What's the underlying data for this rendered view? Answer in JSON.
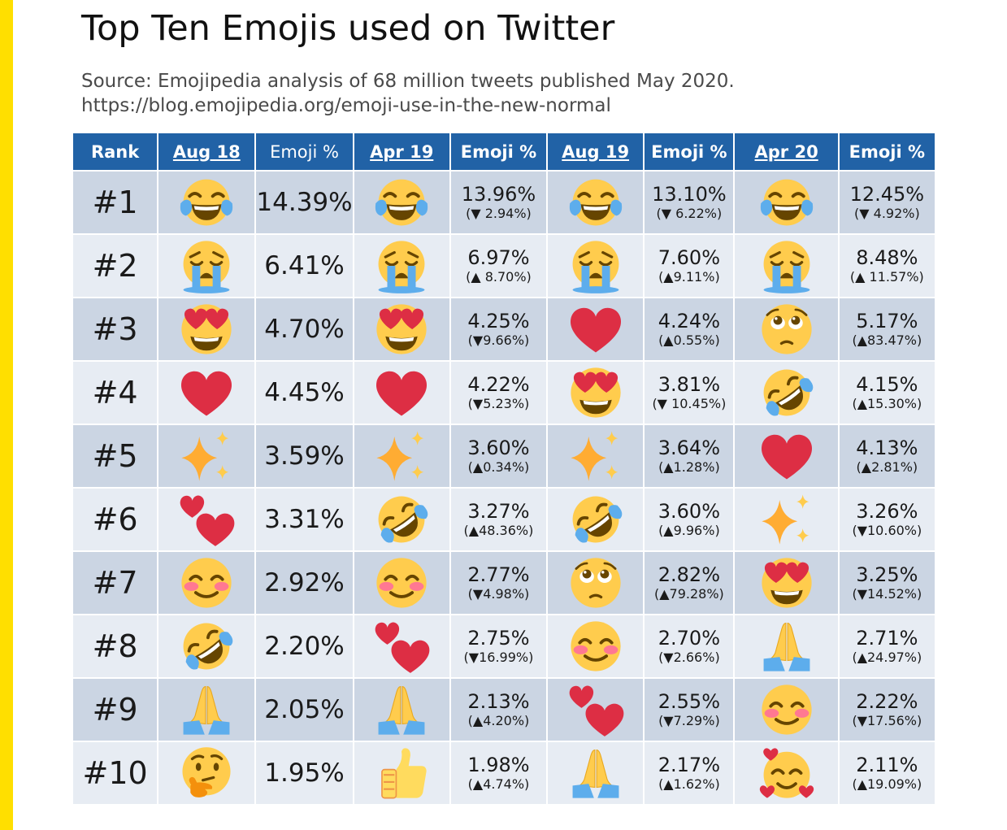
{
  "title": "Top Ten Emojis used on Twitter",
  "source_line1": "Source: Emojipedia analysis of 68 million tweets published May 2020.",
  "source_line2": "https://blog.emojipedia.org/emoji-use-in-the-new-normal",
  "colors": {
    "header_bg": "#2162a6",
    "row_dark": "#cbd5e3",
    "row_light": "#e7ecf3",
    "accent_bar": "#ffdf00"
  },
  "headers": [
    "Rank",
    "Aug 18",
    "Emoji %",
    "Apr 19",
    "Emoji %",
    "Aug 19",
    "Emoji %",
    "Apr 20",
    "Emoji %"
  ],
  "rows": [
    {
      "rank": "#1",
      "aug18": {
        "emoji": "face-with-tears-of-joy",
        "pct": "14.39%"
      },
      "apr19": {
        "emoji": "face-with-tears-of-joy",
        "pct": "13.96%",
        "chg": "(▼ 2.94%)"
      },
      "aug19": {
        "emoji": "face-with-tears-of-joy",
        "pct": "13.10%",
        "chg": "(▼ 6.22%)"
      },
      "apr20": {
        "emoji": "face-with-tears-of-joy",
        "pct": "12.45%",
        "chg": "(▼ 4.92%)"
      }
    },
    {
      "rank": "#2",
      "aug18": {
        "emoji": "loudly-crying-face",
        "pct": "6.41%"
      },
      "apr19": {
        "emoji": "loudly-crying-face",
        "pct": "6.97%",
        "chg": "(▲ 8.70%)"
      },
      "aug19": {
        "emoji": "loudly-crying-face",
        "pct": "7.60%",
        "chg": "(▲9.11%)"
      },
      "apr20": {
        "emoji": "loudly-crying-face",
        "pct": "8.48%",
        "chg": "(▲ 11.57%)"
      }
    },
    {
      "rank": "#3",
      "aug18": {
        "emoji": "heart-eyes",
        "pct": "4.70%"
      },
      "apr19": {
        "emoji": "heart-eyes",
        "pct": "4.25%",
        "chg": "(▼9.66%)"
      },
      "aug19": {
        "emoji": "red-heart",
        "pct": "4.24%",
        "chg": "(▲0.55%)"
      },
      "apr20": {
        "emoji": "pleading-face",
        "pct": "5.17%",
        "chg": "(▲83.47%)"
      }
    },
    {
      "rank": "#4",
      "aug18": {
        "emoji": "red-heart",
        "pct": "4.45%"
      },
      "apr19": {
        "emoji": "red-heart",
        "pct": "4.22%",
        "chg": "(▼5.23%)"
      },
      "aug19": {
        "emoji": "heart-eyes",
        "pct": "3.81%",
        "chg": "(▼ 10.45%)"
      },
      "apr20": {
        "emoji": "rolling-on-floor-laughing",
        "pct": "4.15%",
        "chg": "(▲15.30%)"
      }
    },
    {
      "rank": "#5",
      "aug18": {
        "emoji": "sparkles",
        "pct": "3.59%"
      },
      "apr19": {
        "emoji": "sparkles",
        "pct": "3.60%",
        "chg": "(▲0.34%)"
      },
      "aug19": {
        "emoji": "sparkles",
        "pct": "3.64%",
        "chg": "(▲1.28%)"
      },
      "apr20": {
        "emoji": "red-heart",
        "pct": "4.13%",
        "chg": "(▲2.81%)"
      }
    },
    {
      "rank": "#6",
      "aug18": {
        "emoji": "two-hearts",
        "pct": "3.31%"
      },
      "apr19": {
        "emoji": "rolling-on-floor-laughing",
        "pct": "3.27%",
        "chg": "(▲48.36%)"
      },
      "aug19": {
        "emoji": "rolling-on-floor-laughing",
        "pct": "3.60%",
        "chg": "(▲9.96%)"
      },
      "apr20": {
        "emoji": "sparkles",
        "pct": "3.26%",
        "chg": "(▼10.60%)"
      }
    },
    {
      "rank": "#7",
      "aug18": {
        "emoji": "smiling-eyes",
        "pct": "2.92%"
      },
      "apr19": {
        "emoji": "smiling-eyes",
        "pct": "2.77%",
        "chg": "(▼4.98%)"
      },
      "aug19": {
        "emoji": "pleading-face",
        "pct": "2.82%",
        "chg": "(▲79.28%)"
      },
      "apr20": {
        "emoji": "heart-eyes",
        "pct": "3.25%",
        "chg": "(▼14.52%)"
      }
    },
    {
      "rank": "#8",
      "aug18": {
        "emoji": "rolling-on-floor-laughing",
        "pct": "2.20%"
      },
      "apr19": {
        "emoji": "two-hearts",
        "pct": "2.75%",
        "chg": "(▼16.99%)"
      },
      "aug19": {
        "emoji": "smiling-eyes",
        "pct": "2.70%",
        "chg": "(▼2.66%)"
      },
      "apr20": {
        "emoji": "folded-hands",
        "pct": "2.71%",
        "chg": "(▲24.97%)"
      }
    },
    {
      "rank": "#9",
      "aug18": {
        "emoji": "folded-hands",
        "pct": "2.05%"
      },
      "apr19": {
        "emoji": "folded-hands",
        "pct": "2.13%",
        "chg": "(▲4.20%)"
      },
      "aug19": {
        "emoji": "two-hearts",
        "pct": "2.55%",
        "chg": "(▼7.29%)"
      },
      "apr20": {
        "emoji": "smiling-eyes",
        "pct": "2.22%",
        "chg": "(▼17.56%)"
      }
    },
    {
      "rank": "#10",
      "aug18": {
        "emoji": "thinking-face",
        "pct": "1.95%"
      },
      "apr19": {
        "emoji": "thumbs-up",
        "pct": "1.98%",
        "chg": "(▲4.74%)"
      },
      "aug19": {
        "emoji": "folded-hands",
        "pct": "2.17%",
        "chg": "(▲1.62%)"
      },
      "apr20": {
        "emoji": "smiling-face-with-hearts",
        "pct": "2.11%",
        "chg": "(▲19.09%)"
      }
    }
  ]
}
